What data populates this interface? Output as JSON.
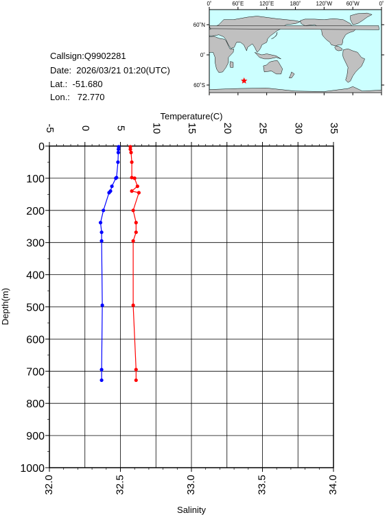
{
  "info": {
    "callsign": "Callsign:Q9902281",
    "date": "Date:  2026/03/21 01:20(UTC)",
    "lat": "Lat.:  -51.680",
    "lon": "Lon.:   72.770"
  },
  "map": {
    "top_labels": [
      "0˚",
      "60˚E",
      "120˚E",
      "180˚",
      "120˚W",
      "60˚W",
      "0˚"
    ],
    "lat_labels": [
      "60˚N",
      "0˚",
      "60˚S"
    ],
    "ocean_color": "#ccffff",
    "land_color": "#c0c0c0",
    "marker_color": "#ff0000",
    "marker": {
      "lon": 72.77,
      "lat": -51.68
    }
  },
  "chart_data": {
    "type": "line",
    "xlabel_top": "Temperature(C)",
    "xlabel_bottom": "Salinity",
    "ylabel": "Depth(m)",
    "temperature_range": [
      -5,
      35
    ],
    "salinity_range": [
      32.0,
      34.0
    ],
    "depth_range": [
      0,
      1000
    ],
    "temperature_ticks": [
      "-5",
      "0",
      "5",
      "10",
      "15",
      "20",
      "25",
      "30",
      "35"
    ],
    "salinity_ticks": [
      "32.0",
      "32.5",
      "33.0",
      "33.5",
      "34.0"
    ],
    "depth_ticks": [
      "0",
      "100",
      "200",
      "300",
      "400",
      "500",
      "600",
      "700",
      "800",
      "900",
      "1000"
    ],
    "grid": true,
    "series": [
      {
        "axis": "temperature",
        "color": "#0000ff",
        "points": [
          [
            4.75,
            2
          ],
          [
            4.72,
            10
          ],
          [
            4.7,
            20
          ],
          [
            4.65,
            50
          ],
          [
            4.45,
            98
          ],
          [
            4.35,
            100
          ],
          [
            3.8,
            125
          ],
          [
            3.6,
            140
          ],
          [
            3.4,
            145
          ],
          [
            2.6,
            200
          ],
          [
            2.2,
            238
          ],
          [
            2.35,
            268
          ],
          [
            2.35,
            295
          ],
          [
            2.45,
            495
          ],
          [
            2.35,
            695
          ],
          [
            2.35,
            728
          ]
        ]
      },
      {
        "axis": "salinity",
        "color": "#ff0000",
        "points": [
          [
            32.57,
            2
          ],
          [
            32.57,
            10
          ],
          [
            32.575,
            20
          ],
          [
            32.58,
            50
          ],
          [
            32.58,
            98
          ],
          [
            32.6,
            100
          ],
          [
            32.62,
            125
          ],
          [
            32.58,
            140
          ],
          [
            32.63,
            145
          ],
          [
            32.59,
            200
          ],
          [
            32.61,
            238
          ],
          [
            32.61,
            268
          ],
          [
            32.59,
            295
          ],
          [
            32.59,
            495
          ],
          [
            32.61,
            695
          ],
          [
            32.61,
            728
          ]
        ]
      }
    ]
  }
}
